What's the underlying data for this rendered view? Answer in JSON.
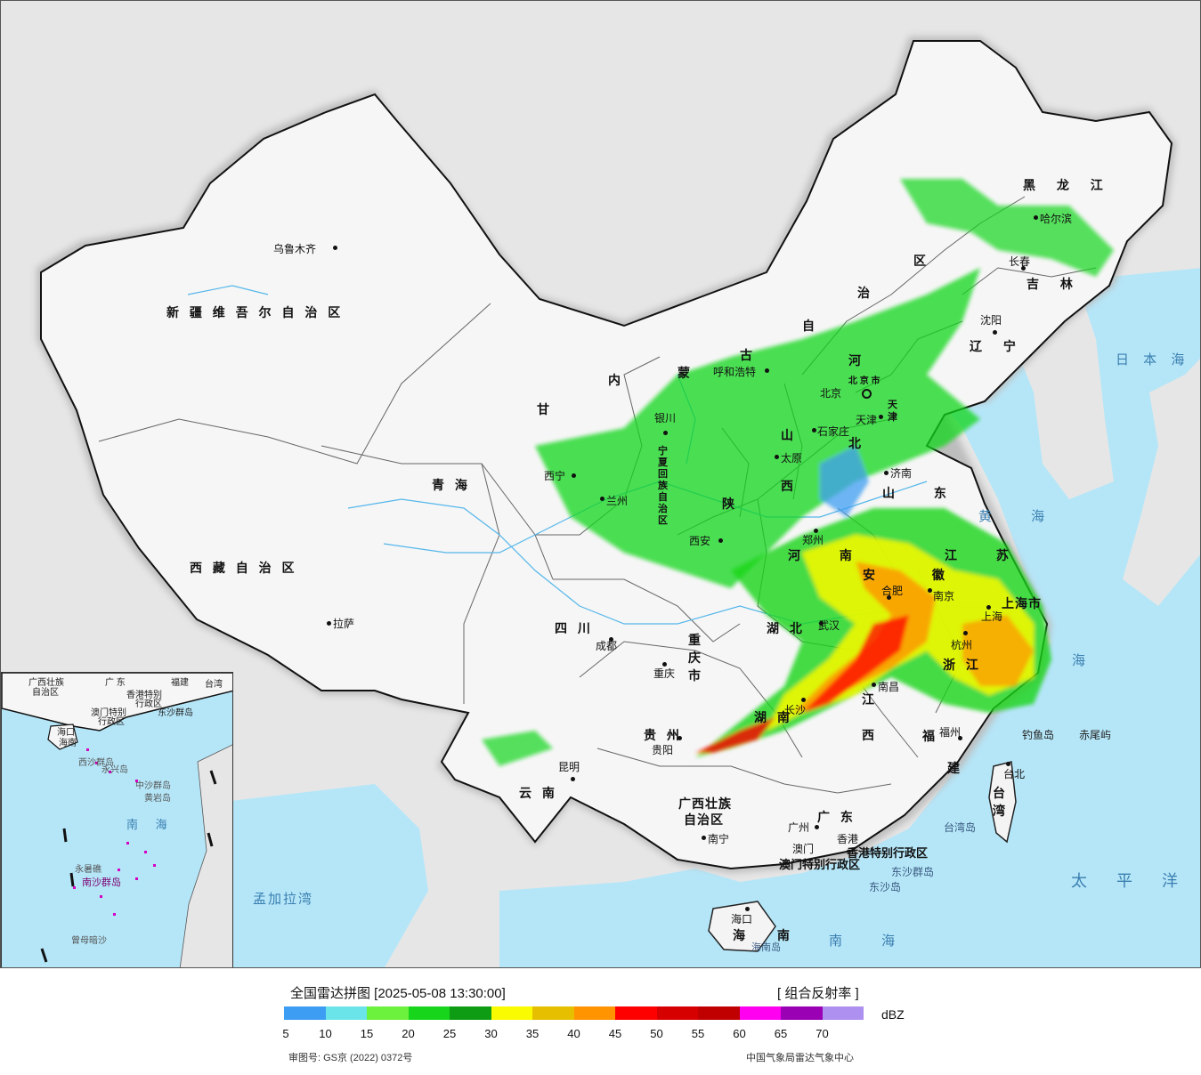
{
  "legend": {
    "title": "全国雷达拼图 [2025-05-08 13:30:00]",
    "product": "[ 组合反射率 ]",
    "unit": "dBZ",
    "colors": [
      "#3d9df2",
      "#6ae3e9",
      "#6cf23d",
      "#16d51a",
      "#0f9c15",
      "#fafa00",
      "#e6c000",
      "#ff9300",
      "#ff0000",
      "#d70000",
      "#c00000",
      "#ff00f0",
      "#9a00b4",
      "#ae90f0"
    ],
    "ticks": [
      "5",
      "10",
      "15",
      "20",
      "25",
      "30",
      "35",
      "40",
      "45",
      "50",
      "55",
      "60",
      "65",
      "70"
    ],
    "approval": "审图号: GS京 (2022) 0372号",
    "source": "中国气象局雷达气象中心"
  },
  "provinces": {
    "xinjiang": "新 疆 维 吾 尔 自 治 区",
    "xizang": "西 藏 自 治 区",
    "qinghai": "青 海",
    "gansu": "甘",
    "sichuan": "四 川",
    "yunnan": "云 南",
    "guizhou": "贵 州",
    "guangxi_1": "广西壮族",
    "guangxi_2": "自治区",
    "guangdong": "广 东",
    "hunan": "湖 南",
    "hubei": "湖 北",
    "jiangxi_1": "江",
    "jiangxi_2": "西",
    "fujian_1": "福",
    "fujian_2": "建",
    "zhejiang": "浙 江",
    "anhui": "安 徽",
    "jiangsu": "江 苏",
    "shandong": "山 东",
    "henan": "河 南",
    "shanxi_1": "山",
    "shanxi_2": "西",
    "shaanxi": "陕",
    "neimenggu_1": "内",
    "neimenggu_2": "蒙",
    "neimenggu_3": "古",
    "neimenggu_4": "自",
    "neimenggu_5": "治",
    "neimenggu_6": "区",
    "heilongjiang": "黑 龙 江",
    "jilin": "吉 林",
    "liaoning": "辽 宁",
    "hebei_1": "河",
    "hebei_2": "北",
    "chongqing": "重 庆 市",
    "shanghai": "上海市",
    "hainan": "海 南",
    "taiwan": "台 湾",
    "hongkong": "香港特别行政区",
    "macao": "澳门特别行政区",
    "ningxia": "宁 夏 回 族 自 治 区",
    "tianjin": "天 津",
    "beijing_prov": "北 京 市"
  },
  "cities": {
    "urumqi": "乌鲁木齐",
    "lhasa": "拉萨",
    "xining": "西宁",
    "lanzhou": "兰州",
    "yinchuan": "银川",
    "huhehaote": "呼和浩特",
    "beijing": "北京",
    "tianjin": "天津",
    "shijiazhuang": "石家庄",
    "taiyuan": "太原",
    "jinan": "济南",
    "zhengzhou": "郑州",
    "xian": "西安",
    "chengdu": "成都",
    "chongqing": "重庆",
    "wuhan": "武汉",
    "hefei": "合肥",
    "nanjing": "南京",
    "shanghai": "上海",
    "hangzhou": "杭州",
    "nanchang": "南昌",
    "changsha": "长沙",
    "guiyang": "贵阳",
    "kunming": "昆明",
    "nanning": "南宁",
    "guangzhou": "广州",
    "xianggang": "香港",
    "aomen": "澳门",
    "fuzhou": "福州",
    "taibei": "台北",
    "haikou": "海口",
    "shenyang": "沈阳",
    "changchun": "长春",
    "haerbin": "哈尔滨"
  },
  "seas": {
    "japan_sea": "日 本 海",
    "yellow_sea": "黄 海",
    "east_sea": "海",
    "pacific": "太 平 洋",
    "south_sea": "南 海",
    "bengal": "孟加拉湾"
  },
  "islands": {
    "diaoyu": "钓鱼岛",
    "chiwei": "赤尾屿",
    "taiwan_island": "台湾岛",
    "dongsha_islands": "东沙群岛",
    "dongsha": "东沙岛",
    "hainan_island": "海南岛"
  },
  "inset": {
    "guangxi": "广西壮族",
    "guangxi2": "自治区",
    "guangdong": "广 东",
    "fujian": "福建",
    "taiwan": "台湾",
    "hk": "香港特别",
    "hk2": "行政区",
    "macau": "澳门特别",
    "macau2": "行政区",
    "dongsha": "东沙群岛",
    "haikou": "海口",
    "hainan": "海南",
    "xisha": "西沙群岛",
    "yongxing": "永兴岛",
    "zhongsha": "中沙群岛",
    "huangyan": "黄岩岛",
    "south_sea": "南 海",
    "nansha": "南沙群岛",
    "yongshu": "永暑礁",
    "zengmu": "曾母暗沙"
  }
}
